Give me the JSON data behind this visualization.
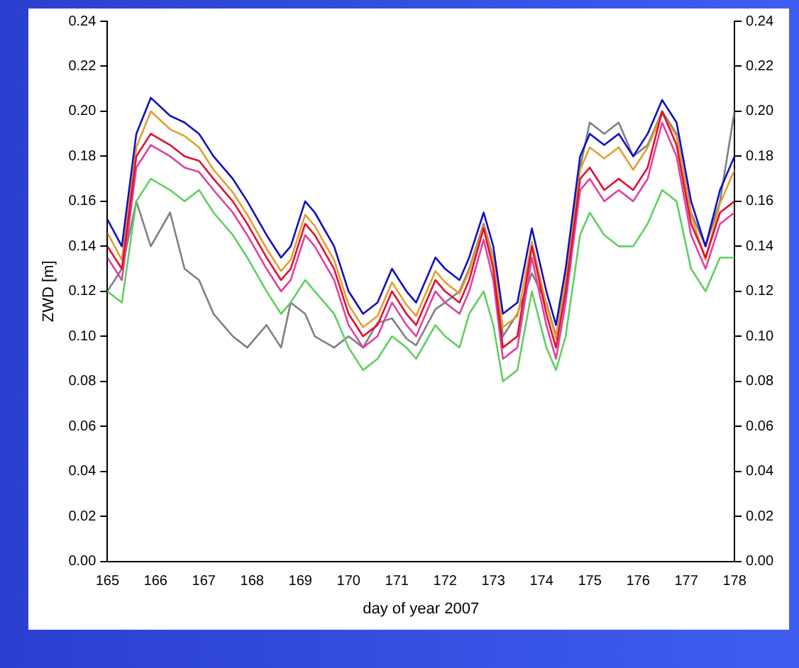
{
  "chart_data": {
    "type": "line",
    "xlabel": "day of year 2007",
    "ylabel": "ZWD [m]",
    "x": [
      165.0,
      165.3,
      165.6,
      165.9,
      166.3,
      166.6,
      166.9,
      167.2,
      167.6,
      167.9,
      168.3,
      168.6,
      168.8,
      169.1,
      169.3,
      169.7,
      170.0,
      170.3,
      170.6,
      170.9,
      171.2,
      171.4,
      171.8,
      172.0,
      172.3,
      172.5,
      172.8,
      173.0,
      173.2,
      173.5,
      173.8,
      174.1,
      174.3,
      174.5,
      174.8,
      175.0,
      175.3,
      175.6,
      175.9,
      176.2,
      176.5,
      176.8,
      177.1,
      177.4,
      177.7,
      178.0
    ],
    "series": [
      {
        "color": "#808080",
        "values": [
          0.12,
          0.13,
          0.16,
          0.14,
          0.155,
          0.13,
          0.125,
          0.11,
          0.1,
          0.095,
          0.105,
          0.095,
          0.115,
          0.11,
          0.1,
          0.095,
          0.1,
          0.095,
          0.106,
          0.108,
          0.099,
          0.096,
          0.112,
          0.115,
          0.12,
          0.13,
          0.15,
          0.135,
          0.1,
          0.11,
          0.128,
          0.115,
          0.1,
          0.125,
          0.175,
          0.195,
          0.19,
          0.195,
          0.18,
          0.185,
          0.2,
          0.19,
          0.155,
          0.14,
          0.16,
          0.2
        ]
      },
      {
        "color": "#60d060",
        "values": [
          0.12,
          0.115,
          0.16,
          0.17,
          0.165,
          0.16,
          0.165,
          0.155,
          0.145,
          0.135,
          0.12,
          0.11,
          0.115,
          0.125,
          0.12,
          0.11,
          0.095,
          0.085,
          0.09,
          0.1,
          0.095,
          0.09,
          0.105,
          0.1,
          0.095,
          0.11,
          0.12,
          0.105,
          0.08,
          0.085,
          0.12,
          0.095,
          0.085,
          0.1,
          0.145,
          0.155,
          0.145,
          0.14,
          0.14,
          0.15,
          0.165,
          0.16,
          0.13,
          0.12,
          0.135,
          0.135
        ]
      },
      {
        "color": "#e0a030",
        "values": [
          0.146,
          0.134,
          0.184,
          0.2,
          0.192,
          0.189,
          0.184,
          0.174,
          0.164,
          0.154,
          0.139,
          0.129,
          0.134,
          0.154,
          0.149,
          0.134,
          0.114,
          0.104,
          0.109,
          0.124,
          0.114,
          0.109,
          0.129,
          0.124,
          0.119,
          0.129,
          0.149,
          0.134,
          0.104,
          0.109,
          0.142,
          0.114,
          0.099,
          0.124,
          0.174,
          0.184,
          0.179,
          0.184,
          0.174,
          0.184,
          0.199,
          0.189,
          0.154,
          0.134,
          0.159,
          0.174
        ]
      },
      {
        "color": "#e040a0",
        "values": [
          0.135,
          0.125,
          0.175,
          0.185,
          0.18,
          0.175,
          0.173,
          0.165,
          0.155,
          0.145,
          0.13,
          0.12,
          0.125,
          0.145,
          0.14,
          0.125,
          0.105,
          0.095,
          0.1,
          0.115,
          0.105,
          0.1,
          0.12,
          0.115,
          0.11,
          0.12,
          0.143,
          0.125,
          0.09,
          0.095,
          0.135,
          0.105,
          0.09,
          0.115,
          0.165,
          0.17,
          0.16,
          0.165,
          0.16,
          0.17,
          0.195,
          0.18,
          0.145,
          0.13,
          0.15,
          0.155
        ]
      },
      {
        "color": "#e01030",
        "values": [
          0.14,
          0.13,
          0.18,
          0.19,
          0.185,
          0.18,
          0.178,
          0.17,
          0.16,
          0.15,
          0.135,
          0.125,
          0.13,
          0.15,
          0.145,
          0.13,
          0.11,
          0.1,
          0.105,
          0.12,
          0.11,
          0.105,
          0.125,
          0.12,
          0.115,
          0.125,
          0.148,
          0.13,
          0.095,
          0.1,
          0.14,
          0.11,
          0.095,
          0.12,
          0.17,
          0.175,
          0.165,
          0.17,
          0.165,
          0.175,
          0.2,
          0.185,
          0.15,
          0.135,
          0.155,
          0.16
        ]
      },
      {
        "color": "#1010c0",
        "values": [
          0.152,
          0.14,
          0.19,
          0.206,
          0.198,
          0.195,
          0.19,
          0.18,
          0.17,
          0.16,
          0.145,
          0.135,
          0.14,
          0.16,
          0.155,
          0.14,
          0.12,
          0.11,
          0.115,
          0.13,
          0.12,
          0.115,
          0.135,
          0.13,
          0.125,
          0.135,
          0.155,
          0.14,
          0.11,
          0.115,
          0.148,
          0.12,
          0.105,
          0.13,
          0.18,
          0.19,
          0.185,
          0.19,
          0.18,
          0.19,
          0.205,
          0.195,
          0.16,
          0.14,
          0.165,
          0.18
        ]
      }
    ],
    "xlim": [
      165,
      178
    ],
    "xticks": [
      165,
      166,
      167,
      168,
      169,
      170,
      171,
      172,
      173,
      174,
      175,
      176,
      177,
      178
    ],
    "ylim": [
      0,
      0.24
    ],
    "yticks": [
      {
        "value": 0,
        "label": "0.00"
      },
      {
        "value": 0.02,
        "label": "0.02"
      },
      {
        "value": 0.04,
        "label": "0.04"
      },
      {
        "value": 0.06,
        "label": "0.06"
      },
      {
        "value": 0.08,
        "label": "0.08"
      },
      {
        "value": 0.1,
        "label": "0.10"
      },
      {
        "value": 0.12,
        "label": "0.12"
      },
      {
        "value": 0.14,
        "label": "0.14"
      },
      {
        "value": 0.16,
        "label": "0.16"
      },
      {
        "value": 0.18,
        "label": "0.18"
      },
      {
        "value": 0.2,
        "label": "0.20"
      },
      {
        "value": 0.22,
        "label": "0.22"
      },
      {
        "value": 0.24,
        "label": "0.24"
      }
    ],
    "y2lim": [
      0,
      0.24
    ],
    "y2ticks": [
      {
        "value": 0,
        "label": "0.00"
      },
      {
        "value": 0.02,
        "label": "0.02"
      },
      {
        "value": 0.04,
        "label": "0.04"
      },
      {
        "value": 0.06,
        "label": "0.06"
      },
      {
        "value": 0.08,
        "label": "0.08"
      },
      {
        "value": 0.1,
        "label": "0.10"
      },
      {
        "value": 0.12,
        "label": "0.12"
      },
      {
        "value": 0.14,
        "label": "0.14"
      },
      {
        "value": 0.16,
        "label": "0.16"
      },
      {
        "value": 0.18,
        "label": "0.18"
      },
      {
        "value": 0.2,
        "label": "0.20"
      },
      {
        "value": 0.22,
        "label": "0.22"
      },
      {
        "value": 0.24,
        "label": "0.24"
      }
    ],
    "grid": false,
    "legend": false,
    "marker": "none",
    "line_style": "solid"
  }
}
